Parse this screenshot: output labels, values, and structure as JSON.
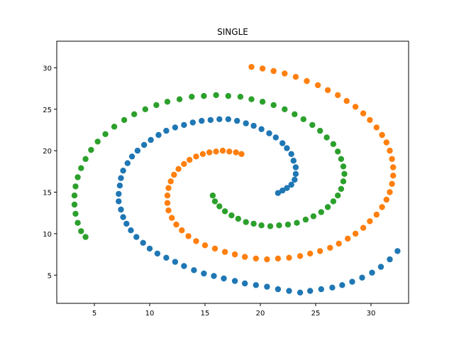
{
  "chart_data": {
    "type": "scatter",
    "title": "SINGLE",
    "xlabel": "",
    "ylabel": "",
    "xlim": [
      1.6,
      33.4
    ],
    "ylim": [
      1.6,
      33.2
    ],
    "xticks": [
      5,
      10,
      15,
      20,
      25,
      30
    ],
    "yticks": [
      5,
      10,
      15,
      20,
      25,
      30
    ],
    "grid": false,
    "legend": "none",
    "series": [
      {
        "color": "#1f77b4",
        "points": [
          [
            21.6,
            14.9
          ],
          [
            22.0,
            15.2
          ],
          [
            22.4,
            15.5
          ],
          [
            22.8,
            15.9
          ],
          [
            23.1,
            16.5
          ],
          [
            23.2,
            17.2
          ],
          [
            23.2,
            18.0
          ],
          [
            23.0,
            18.8
          ],
          [
            22.8,
            19.6
          ],
          [
            22.4,
            20.3
          ],
          [
            22.0,
            20.9
          ],
          [
            21.4,
            21.6
          ],
          [
            20.8,
            22.1
          ],
          [
            20.1,
            22.6
          ],
          [
            19.4,
            23.0
          ],
          [
            18.7,
            23.3
          ],
          [
            17.9,
            23.6
          ],
          [
            17.1,
            23.8
          ],
          [
            16.3,
            23.8
          ],
          [
            15.5,
            23.7
          ],
          [
            14.7,
            23.6
          ],
          [
            13.9,
            23.4
          ],
          [
            13.1,
            23.1
          ],
          [
            12.3,
            22.8
          ],
          [
            11.5,
            22.4
          ],
          [
            10.8,
            21.9
          ],
          [
            10.1,
            21.3
          ],
          [
            9.5,
            20.7
          ],
          [
            8.9,
            20.0
          ],
          [
            8.4,
            19.3
          ],
          [
            8.0,
            18.5
          ],
          [
            7.6,
            17.6
          ],
          [
            7.4,
            16.7
          ],
          [
            7.3,
            15.8
          ],
          [
            7.2,
            14.8
          ],
          [
            7.2,
            13.9
          ],
          [
            7.4,
            12.9
          ],
          [
            7.6,
            12.0
          ],
          [
            7.9,
            11.2
          ],
          [
            8.3,
            10.4
          ],
          [
            8.8,
            9.6
          ],
          [
            9.4,
            8.9
          ],
          [
            10.0,
            8.2
          ],
          [
            10.7,
            7.6
          ],
          [
            11.5,
            7.1
          ],
          [
            12.3,
            6.6
          ],
          [
            13.1,
            6.1
          ],
          [
            14.0,
            5.6
          ],
          [
            14.9,
            5.2
          ],
          [
            15.8,
            4.9
          ],
          [
            16.7,
            4.6
          ],
          [
            17.7,
            4.3
          ],
          [
            18.6,
            4.0
          ],
          [
            19.6,
            3.8
          ],
          [
            20.6,
            3.6
          ],
          [
            21.6,
            3.3
          ],
          [
            22.6,
            3.1
          ],
          [
            23.6,
            2.9
          ],
          [
            24.5,
            3.1
          ],
          [
            25.5,
            3.3
          ],
          [
            26.5,
            3.5
          ],
          [
            27.4,
            3.8
          ],
          [
            28.3,
            4.2
          ],
          [
            29.2,
            4.7
          ],
          [
            30.1,
            5.3
          ],
          [
            30.9,
            6.0
          ],
          [
            31.7,
            6.9
          ],
          [
            32.4,
            7.9
          ]
        ]
      },
      {
        "color": "#ff7f0e",
        "points": [
          [
            18.3,
            19.6
          ],
          [
            17.8,
            19.8
          ],
          [
            17.2,
            19.9
          ],
          [
            16.6,
            20.0
          ],
          [
            16.0,
            19.9
          ],
          [
            15.4,
            19.8
          ],
          [
            14.8,
            19.6
          ],
          [
            14.2,
            19.3
          ],
          [
            13.6,
            18.9
          ],
          [
            13.1,
            18.4
          ],
          [
            12.6,
            17.8
          ],
          [
            12.2,
            17.1
          ],
          [
            11.9,
            16.3
          ],
          [
            11.7,
            15.5
          ],
          [
            11.6,
            14.6
          ],
          [
            11.6,
            13.7
          ],
          [
            11.7,
            12.8
          ],
          [
            12.0,
            11.9
          ],
          [
            12.4,
            11.1
          ],
          [
            12.9,
            10.4
          ],
          [
            13.5,
            9.7
          ],
          [
            14.2,
            9.1
          ],
          [
            15.0,
            8.6
          ],
          [
            15.9,
            8.2
          ],
          [
            16.8,
            7.8
          ],
          [
            17.7,
            7.5
          ],
          [
            18.6,
            7.2
          ],
          [
            19.6,
            7.0
          ],
          [
            20.6,
            6.9
          ],
          [
            21.6,
            7.0
          ],
          [
            22.6,
            7.1
          ],
          [
            23.6,
            7.3
          ],
          [
            24.5,
            7.6
          ],
          [
            25.4,
            7.9
          ],
          [
            26.3,
            8.3
          ],
          [
            27.1,
            8.8
          ],
          [
            27.9,
            9.4
          ],
          [
            28.6,
            10.0
          ],
          [
            29.3,
            10.7
          ],
          [
            29.9,
            11.5
          ],
          [
            30.5,
            12.3
          ],
          [
            31.0,
            13.2
          ],
          [
            31.4,
            14.1
          ],
          [
            31.7,
            15.0
          ],
          [
            31.9,
            16.0
          ],
          [
            32.0,
            17.0
          ],
          [
            32.0,
            18.0
          ],
          [
            31.9,
            19.0
          ],
          [
            31.7,
            20.0
          ],
          [
            31.4,
            21.0
          ],
          [
            31.0,
            21.9
          ],
          [
            30.5,
            22.8
          ],
          [
            29.9,
            23.7
          ],
          [
            29.3,
            24.5
          ],
          [
            28.6,
            25.3
          ],
          [
            27.8,
            26.0
          ],
          [
            27.0,
            26.7
          ],
          [
            26.1,
            27.3
          ],
          [
            25.2,
            27.9
          ],
          [
            24.2,
            28.4
          ],
          [
            23.2,
            28.9
          ],
          [
            22.2,
            29.3
          ],
          [
            21.2,
            29.6
          ],
          [
            20.2,
            29.9
          ],
          [
            19.2,
            30.1
          ]
        ]
      },
      {
        "color": "#2ca02c",
        "points": [
          [
            15.7,
            14.6
          ],
          [
            15.9,
            13.9
          ],
          [
            16.3,
            13.3
          ],
          [
            16.8,
            12.7
          ],
          [
            17.4,
            12.2
          ],
          [
            18.0,
            11.8
          ],
          [
            18.7,
            11.4
          ],
          [
            19.4,
            11.2
          ],
          [
            20.1,
            11.0
          ],
          [
            20.9,
            10.9
          ],
          [
            21.7,
            11.0
          ],
          [
            22.5,
            11.1
          ],
          [
            23.3,
            11.3
          ],
          [
            24.1,
            11.7
          ],
          [
            24.8,
            12.1
          ],
          [
            25.5,
            12.6
          ],
          [
            26.1,
            13.2
          ],
          [
            26.6,
            13.9
          ],
          [
            27.0,
            14.6
          ],
          [
            27.3,
            15.4
          ],
          [
            27.5,
            16.3
          ],
          [
            27.6,
            17.2
          ],
          [
            27.5,
            18.1
          ],
          [
            27.3,
            19.0
          ],
          [
            27.0,
            19.9
          ],
          [
            26.6,
            20.8
          ],
          [
            26.0,
            21.6
          ],
          [
            25.4,
            22.4
          ],
          [
            24.7,
            23.1
          ],
          [
            23.9,
            23.8
          ],
          [
            23.1,
            24.4
          ],
          [
            22.2,
            25.0
          ],
          [
            21.2,
            25.5
          ],
          [
            20.2,
            25.9
          ],
          [
            19.2,
            26.2
          ],
          [
            18.2,
            26.5
          ],
          [
            17.1,
            26.6
          ],
          [
            16.0,
            26.7
          ],
          [
            14.9,
            26.6
          ],
          [
            13.8,
            26.5
          ],
          [
            12.7,
            26.2
          ],
          [
            11.6,
            25.9
          ],
          [
            10.6,
            25.5
          ],
          [
            9.6,
            25.0
          ],
          [
            8.6,
            24.4
          ],
          [
            7.7,
            23.7
          ],
          [
            6.8,
            22.9
          ],
          [
            6.0,
            22.0
          ],
          [
            5.3,
            21.1
          ],
          [
            4.7,
            20.1
          ],
          [
            4.2,
            19.0
          ],
          [
            3.8,
            17.9
          ],
          [
            3.5,
            16.8
          ],
          [
            3.3,
            15.7
          ],
          [
            3.2,
            14.6
          ],
          [
            3.2,
            13.5
          ],
          [
            3.3,
            12.4
          ],
          [
            3.5,
            11.3
          ],
          [
            3.8,
            10.3
          ],
          [
            4.2,
            9.6
          ]
        ]
      }
    ]
  }
}
